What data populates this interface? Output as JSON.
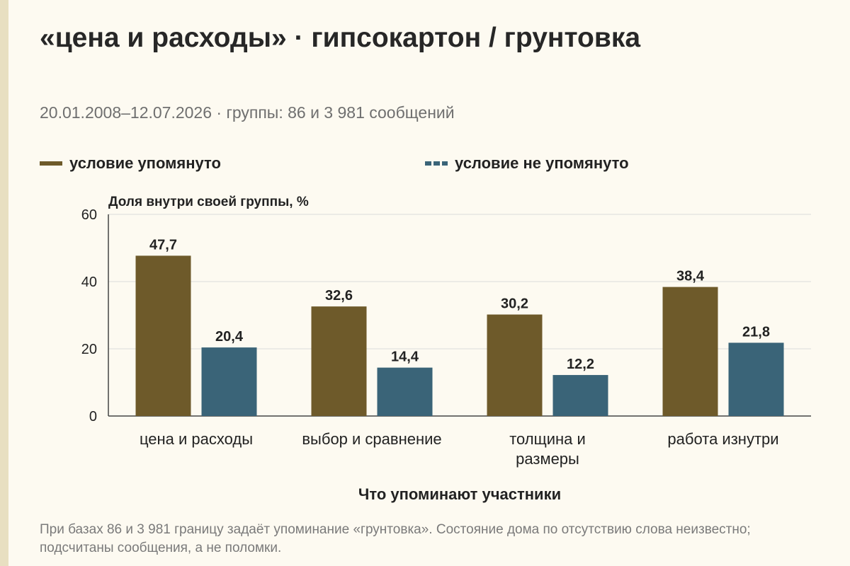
{
  "header": {
    "title": "«цена и расходы» · гипсокартон / грунтовка",
    "subtitle": "20.01.2008–12.07.2026 · группы: 86 и 3 981 сообщений"
  },
  "legend": {
    "series_a": "условие упомянуто",
    "series_b": "условие не упомянуто"
  },
  "chart_data": {
    "type": "bar",
    "title": "",
    "ylabel": "Доля внутри своей группы, %",
    "xlabel": "Что упоминают участники",
    "ylim": [
      0,
      60
    ],
    "yticks": [
      0,
      20,
      40,
      60
    ],
    "grid": true,
    "legend_position": "top",
    "categories": [
      [
        "цена и расходы"
      ],
      [
        "выбор и сравнение"
      ],
      [
        "толщина и",
        "размеры"
      ],
      [
        "работа изнутри"
      ]
    ],
    "series": [
      {
        "name": "условие упомянуто",
        "color": "#6e5a2a",
        "values": [
          47.7,
          32.6,
          30.2,
          38.4
        ],
        "labels": [
          "47,7",
          "32,6",
          "30,2",
          "38,4"
        ]
      },
      {
        "name": "условие не упомянуто",
        "color": "#3a6478",
        "values": [
          20.4,
          14.4,
          12.2,
          21.8
        ],
        "labels": [
          "20,4",
          "14,4",
          "12,2",
          "21,8"
        ]
      }
    ]
  },
  "footnote": "При базах 86 и 3 981 границу задаёт упоминание «грунтовка». Состояние дома по отсутствию слова неизвестно; подсчитаны сообщения, а не поломки."
}
